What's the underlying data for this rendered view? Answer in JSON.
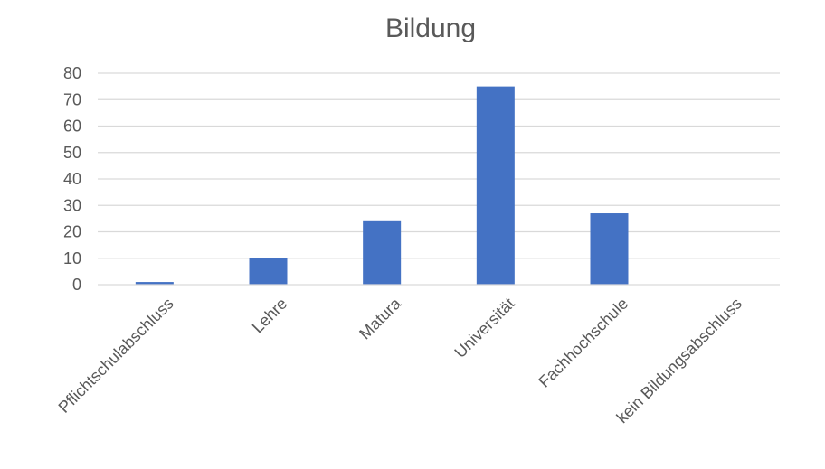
{
  "chart_data": {
    "type": "bar",
    "title": "Bildung",
    "xlabel": "",
    "ylabel": "",
    "categories": [
      "Pflichtschulabschluss",
      "Lehre",
      "Matura",
      "Universität",
      "Fachhochschule",
      "kein Bildungsabschluss"
    ],
    "values": [
      1,
      10,
      24,
      75,
      27,
      0
    ],
    "ylim": [
      0,
      80
    ],
    "yticks": [
      0,
      10,
      20,
      30,
      40,
      50,
      60,
      70,
      80
    ],
    "grid": true,
    "legend": "none",
    "bar_color": "#4472c4"
  }
}
